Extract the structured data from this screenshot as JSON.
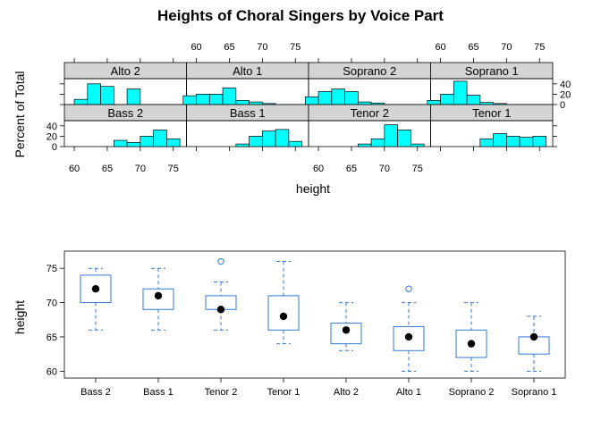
{
  "title": "Heights of Choral Singers by Voice Part",
  "colors": {
    "histogram_fill": "#00ffff",
    "strip_fill": "#d4d4d4",
    "box_stroke": "#3478d4"
  },
  "chart_data": [
    {
      "type": "bar",
      "subtype": "histogram-trellis",
      "xlabel": "height",
      "ylabel": "Percent of Total",
      "xlim": [
        58.5,
        77
      ],
      "ylim": [
        0,
        50
      ],
      "x_ticks": [
        60,
        65,
        70,
        75
      ],
      "y_ticks": [
        0,
        20,
        40
      ],
      "bins": [
        58,
        60,
        62,
        64,
        66,
        68,
        70,
        72,
        74,
        76
      ],
      "panels": [
        {
          "name": "Alto 2",
          "values": [
            0,
            10,
            40,
            35,
            0,
            30,
            0,
            0,
            0
          ]
        },
        {
          "name": "Alto 1",
          "values": [
            17,
            20,
            20,
            32,
            8,
            5,
            2,
            0,
            0
          ]
        },
        {
          "name": "Soprano 2",
          "values": [
            15,
            25,
            30,
            25,
            5,
            3,
            0,
            0,
            0
          ]
        },
        {
          "name": "Soprano 1",
          "values": [
            8,
            20,
            45,
            18,
            4,
            2,
            0,
            0,
            0
          ]
        },
        {
          "name": "Bass 2",
          "values": [
            0,
            0,
            0,
            0,
            12,
            8,
            20,
            32,
            15
          ]
        },
        {
          "name": "Bass 1",
          "values": [
            0,
            0,
            0,
            0,
            5,
            20,
            30,
            33,
            10
          ]
        },
        {
          "name": "Tenor 2",
          "values": [
            0,
            0,
            0,
            0,
            5,
            15,
            42,
            32,
            5
          ]
        },
        {
          "name": "Tenor 1",
          "values": [
            0,
            0,
            0,
            0,
            15,
            25,
            20,
            18,
            20
          ]
        }
      ]
    },
    {
      "type": "box",
      "xlabel": "",
      "ylabel": "height",
      "ylim": [
        59,
        77.5
      ],
      "y_ticks": [
        60,
        65,
        70,
        75
      ],
      "categories": [
        "Bass 2",
        "Bass 1",
        "Tenor 2",
        "Tenor 1",
        "Alto 2",
        "Alto 1",
        "Soprano 2",
        "Soprano 1"
      ],
      "boxes": [
        {
          "min": 66,
          "q1": 70,
          "median": 72,
          "q3": 74,
          "max": 75,
          "outliers": []
        },
        {
          "min": 66,
          "q1": 69,
          "median": 71,
          "q3": 72,
          "max": 75,
          "outliers": []
        },
        {
          "min": 66,
          "q1": 69,
          "median": 69,
          "q3": 71,
          "max": 73,
          "outliers": [
            76
          ]
        },
        {
          "min": 64,
          "q1": 66,
          "median": 68,
          "q3": 71,
          "max": 76,
          "outliers": []
        },
        {
          "min": 63,
          "q1": 64,
          "median": 66,
          "q3": 67,
          "max": 70,
          "outliers": []
        },
        {
          "min": 60,
          "q1": 63,
          "median": 65,
          "q3": 66.5,
          "max": 70,
          "outliers": [
            72
          ]
        },
        {
          "min": 60,
          "q1": 62,
          "median": 64,
          "q3": 66,
          "max": 70,
          "outliers": []
        },
        {
          "min": 60,
          "q1": 62.5,
          "median": 65,
          "q3": 65,
          "max": 68,
          "outliers": []
        }
      ]
    }
  ]
}
